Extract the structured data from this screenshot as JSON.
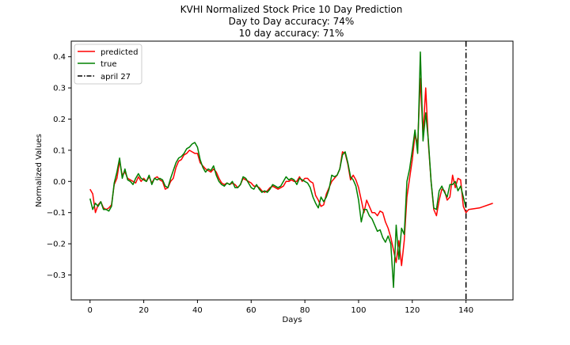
{
  "chart_data": {
    "type": "line",
    "title_lines": [
      "KVHI Normalized Stock Price 10 Day Prediction",
      "Day to Day accuracy: 74%",
      "10 day accuracy: 71%"
    ],
    "xlabel": "Days",
    "ylabel": "Normalized Values",
    "xlim": [
      -7,
      157.5
    ],
    "ylim": [
      -0.38,
      0.45
    ],
    "xticks": [
      0,
      20,
      40,
      60,
      80,
      100,
      120,
      140
    ],
    "yticks": [
      -0.3,
      -0.2,
      -0.1,
      0.0,
      0.1,
      0.2,
      0.3,
      0.4
    ],
    "xtick_labels": [
      "0",
      "20",
      "40",
      "60",
      "80",
      "100",
      "120",
      "140"
    ],
    "ytick_labels": [
      "−0.3",
      "−0.2",
      "−0.1",
      "0.0",
      "0.1",
      "0.2",
      "0.3",
      "0.4"
    ],
    "legend_position": "upper-left",
    "series": [
      {
        "name": "predicted",
        "color": "#ff0000",
        "style": "solid",
        "points": [
          [
            0,
            -0.025
          ],
          [
            1,
            -0.04
          ],
          [
            2,
            -0.1
          ],
          [
            3,
            -0.075
          ],
          [
            4,
            -0.065
          ],
          [
            5,
            -0.085
          ],
          [
            6,
            -0.09
          ],
          [
            7,
            -0.085
          ],
          [
            8,
            -0.075
          ],
          [
            9,
            -0.01
          ],
          [
            10,
            0.01
          ],
          [
            11,
            0.065
          ],
          [
            12,
            0.02
          ],
          [
            13,
            0.03
          ],
          [
            14,
            0.01
          ],
          [
            15,
            0.005
          ],
          [
            16,
            0.0
          ],
          [
            17,
            -0.005
          ],
          [
            18,
            0.015
          ],
          [
            19,
            0.0
          ],
          [
            20,
            0.01
          ],
          [
            21,
            0.0
          ],
          [
            22,
            0.015
          ],
          [
            23,
            -0.005
          ],
          [
            24,
            0.01
          ],
          [
            25,
            0.015
          ],
          [
            26,
            0.005
          ],
          [
            27,
            0.0
          ],
          [
            28,
            -0.025
          ],
          [
            29,
            -0.02
          ],
          [
            30,
            0.0
          ],
          [
            31,
            0.01
          ],
          [
            32,
            0.045
          ],
          [
            33,
            0.065
          ],
          [
            34,
            0.07
          ],
          [
            35,
            0.085
          ],
          [
            36,
            0.09
          ],
          [
            37,
            0.1
          ],
          [
            38,
            0.095
          ],
          [
            39,
            0.09
          ],
          [
            40,
            0.09
          ],
          [
            41,
            0.06
          ],
          [
            42,
            0.05
          ],
          [
            43,
            0.04
          ],
          [
            44,
            0.035
          ],
          [
            45,
            0.03
          ],
          [
            46,
            0.04
          ],
          [
            47,
            0.03
          ],
          [
            48,
            0.01
          ],
          [
            49,
            -0.005
          ],
          [
            50,
            -0.01
          ],
          [
            51,
            -0.005
          ],
          [
            52,
            -0.01
          ],
          [
            53,
            -0.005
          ],
          [
            54,
            -0.01
          ],
          [
            55,
            -0.02
          ],
          [
            56,
            -0.01
          ],
          [
            57,
            0.01
          ],
          [
            58,
            0.005
          ],
          [
            59,
            0.0
          ],
          [
            60,
            -0.005
          ],
          [
            61,
            -0.015
          ],
          [
            62,
            -0.015
          ],
          [
            63,
            -0.02
          ],
          [
            64,
            -0.03
          ],
          [
            65,
            -0.035
          ],
          [
            66,
            -0.03
          ],
          [
            67,
            -0.02
          ],
          [
            68,
            -0.015
          ],
          [
            69,
            -0.02
          ],
          [
            70,
            -0.025
          ],
          [
            71,
            -0.02
          ],
          [
            72,
            -0.015
          ],
          [
            73,
            0.0
          ],
          [
            74,
            0.0
          ],
          [
            75,
            0.005
          ],
          [
            76,
            0.0
          ],
          [
            77,
            0.0
          ],
          [
            78,
            0.015
          ],
          [
            79,
            0.0
          ],
          [
            80,
            0.01
          ],
          [
            81,
            0.01
          ],
          [
            82,
            0.0
          ],
          [
            83,
            -0.005
          ],
          [
            84,
            -0.045
          ],
          [
            85,
            -0.06
          ],
          [
            86,
            -0.08
          ],
          [
            87,
            -0.075
          ],
          [
            88,
            -0.04
          ],
          [
            89,
            -0.02
          ],
          [
            90,
            0.0
          ],
          [
            91,
            0.01
          ],
          [
            92,
            0.02
          ],
          [
            93,
            0.04
          ],
          [
            94,
            0.095
          ],
          [
            95,
            0.09
          ],
          [
            96,
            0.055
          ],
          [
            97,
            0.005
          ],
          [
            98,
            0.02
          ],
          [
            99,
            0.005
          ],
          [
            100,
            -0.02
          ],
          [
            101,
            -0.06
          ],
          [
            102,
            -0.1
          ],
          [
            103,
            -0.06
          ],
          [
            104,
            -0.08
          ],
          [
            105,
            -0.1
          ],
          [
            106,
            -0.1
          ],
          [
            107,
            -0.11
          ],
          [
            108,
            -0.095
          ],
          [
            109,
            -0.1
          ],
          [
            110,
            -0.13
          ],
          [
            111,
            -0.15
          ],
          [
            112,
            -0.18
          ],
          [
            113,
            -0.22
          ],
          [
            114,
            -0.26
          ],
          [
            115,
            -0.19
          ],
          [
            116,
            -0.27
          ],
          [
            117,
            -0.19
          ],
          [
            118,
            -0.05
          ],
          [
            119,
            0.01
          ],
          [
            120,
            0.07
          ],
          [
            121,
            0.15
          ],
          [
            122,
            0.12
          ],
          [
            123,
            0.33
          ],
          [
            124,
            0.15
          ],
          [
            125,
            0.3
          ],
          [
            126,
            0.12
          ],
          [
            127,
            0.0
          ],
          [
            128,
            -0.09
          ],
          [
            129,
            -0.11
          ],
          [
            130,
            -0.06
          ],
          [
            131,
            -0.025
          ],
          [
            132,
            -0.03
          ],
          [
            133,
            -0.06
          ],
          [
            134,
            -0.05
          ],
          [
            135,
            0.02
          ],
          [
            136,
            -0.02
          ],
          [
            137,
            0.01
          ],
          [
            138,
            0.005
          ],
          [
            139,
            -0.08
          ],
          [
            140,
            -0.1
          ],
          [
            141,
            -0.09
          ],
          [
            145,
            -0.085
          ],
          [
            150,
            -0.07
          ]
        ]
      },
      {
        "name": "true",
        "color": "#008000",
        "style": "solid",
        "points": [
          [
            0,
            -0.055
          ],
          [
            1,
            -0.09
          ],
          [
            2,
            -0.07
          ],
          [
            3,
            -0.08
          ],
          [
            4,
            -0.065
          ],
          [
            5,
            -0.09
          ],
          [
            6,
            -0.09
          ],
          [
            7,
            -0.095
          ],
          [
            8,
            -0.08
          ],
          [
            9,
            -0.005
          ],
          [
            10,
            0.03
          ],
          [
            11,
            0.075
          ],
          [
            12,
            0.01
          ],
          [
            13,
            0.04
          ],
          [
            14,
            0.005
          ],
          [
            15,
            0.0
          ],
          [
            16,
            -0.01
          ],
          [
            17,
            0.01
          ],
          [
            18,
            0.025
          ],
          [
            19,
            0.01
          ],
          [
            20,
            0.005
          ],
          [
            21,
            0.0
          ],
          [
            22,
            0.02
          ],
          [
            23,
            -0.01
          ],
          [
            24,
            0.01
          ],
          [
            25,
            0.005
          ],
          [
            26,
            0.01
          ],
          [
            27,
            0.005
          ],
          [
            28,
            -0.015
          ],
          [
            29,
            -0.02
          ],
          [
            30,
            0.01
          ],
          [
            31,
            0.035
          ],
          [
            32,
            0.06
          ],
          [
            33,
            0.075
          ],
          [
            34,
            0.08
          ],
          [
            35,
            0.09
          ],
          [
            36,
            0.105
          ],
          [
            37,
            0.11
          ],
          [
            38,
            0.12
          ],
          [
            39,
            0.125
          ],
          [
            40,
            0.11
          ],
          [
            41,
            0.07
          ],
          [
            42,
            0.045
          ],
          [
            43,
            0.03
          ],
          [
            44,
            0.04
          ],
          [
            45,
            0.035
          ],
          [
            46,
            0.05
          ],
          [
            47,
            0.02
          ],
          [
            48,
            0.0
          ],
          [
            49,
            -0.01
          ],
          [
            50,
            -0.015
          ],
          [
            51,
            -0.005
          ],
          [
            52,
            -0.01
          ],
          [
            53,
            0.0
          ],
          [
            54,
            -0.02
          ],
          [
            55,
            -0.02
          ],
          [
            56,
            -0.01
          ],
          [
            57,
            0.015
          ],
          [
            58,
            0.01
          ],
          [
            59,
            -0.005
          ],
          [
            60,
            -0.02
          ],
          [
            61,
            -0.025
          ],
          [
            62,
            -0.01
          ],
          [
            63,
            -0.025
          ],
          [
            64,
            -0.035
          ],
          [
            65,
            -0.03
          ],
          [
            66,
            -0.035
          ],
          [
            67,
            -0.025
          ],
          [
            68,
            -0.01
          ],
          [
            69,
            -0.015
          ],
          [
            70,
            -0.02
          ],
          [
            71,
            -0.015
          ],
          [
            72,
            0.0
          ],
          [
            73,
            0.015
          ],
          [
            74,
            0.005
          ],
          [
            75,
            0.01
          ],
          [
            76,
            0.005
          ],
          [
            77,
            -0.01
          ],
          [
            78,
            0.01
          ],
          [
            79,
            0.005
          ],
          [
            80,
            0.0
          ],
          [
            81,
            -0.005
          ],
          [
            82,
            -0.02
          ],
          [
            83,
            -0.05
          ],
          [
            84,
            -0.07
          ],
          [
            85,
            -0.085
          ],
          [
            86,
            -0.05
          ],
          [
            87,
            -0.065
          ],
          [
            88,
            -0.05
          ],
          [
            89,
            -0.025
          ],
          [
            90,
            0.02
          ],
          [
            91,
            0.015
          ],
          [
            92,
            0.02
          ],
          [
            93,
            0.04
          ],
          [
            94,
            0.085
          ],
          [
            95,
            0.095
          ],
          [
            96,
            0.06
          ],
          [
            97,
            0.015
          ],
          [
            98,
            0.005
          ],
          [
            99,
            -0.015
          ],
          [
            100,
            -0.06
          ],
          [
            101,
            -0.13
          ],
          [
            102,
            -0.09
          ],
          [
            103,
            -0.09
          ],
          [
            104,
            -0.11
          ],
          [
            105,
            -0.12
          ],
          [
            106,
            -0.14
          ],
          [
            107,
            -0.16
          ],
          [
            108,
            -0.155
          ],
          [
            109,
            -0.18
          ],
          [
            110,
            -0.195
          ],
          [
            111,
            -0.175
          ],
          [
            112,
            -0.2
          ],
          [
            113,
            -0.34
          ],
          [
            114,
            -0.14
          ],
          [
            115,
            -0.25
          ],
          [
            116,
            -0.15
          ],
          [
            117,
            -0.17
          ],
          [
            118,
            0.0
          ],
          [
            119,
            0.04
          ],
          [
            120,
            0.1
          ],
          [
            121,
            0.165
          ],
          [
            122,
            0.09
          ],
          [
            123,
            0.415
          ],
          [
            124,
            0.13
          ],
          [
            125,
            0.22
          ],
          [
            126,
            0.13
          ],
          [
            127,
            0.0
          ],
          [
            128,
            -0.085
          ],
          [
            129,
            -0.09
          ],
          [
            130,
            -0.03
          ],
          [
            131,
            -0.015
          ],
          [
            132,
            -0.035
          ],
          [
            133,
            -0.05
          ],
          [
            134,
            -0.01
          ],
          [
            135,
            -0.01
          ],
          [
            136,
            0.0
          ],
          [
            137,
            -0.03
          ],
          [
            138,
            -0.015
          ],
          [
            139,
            -0.05
          ],
          [
            140,
            -0.085
          ]
        ]
      }
    ],
    "vline": {
      "name": "april 27",
      "x": 140,
      "color": "#000000",
      "style": "dashdot"
    }
  }
}
